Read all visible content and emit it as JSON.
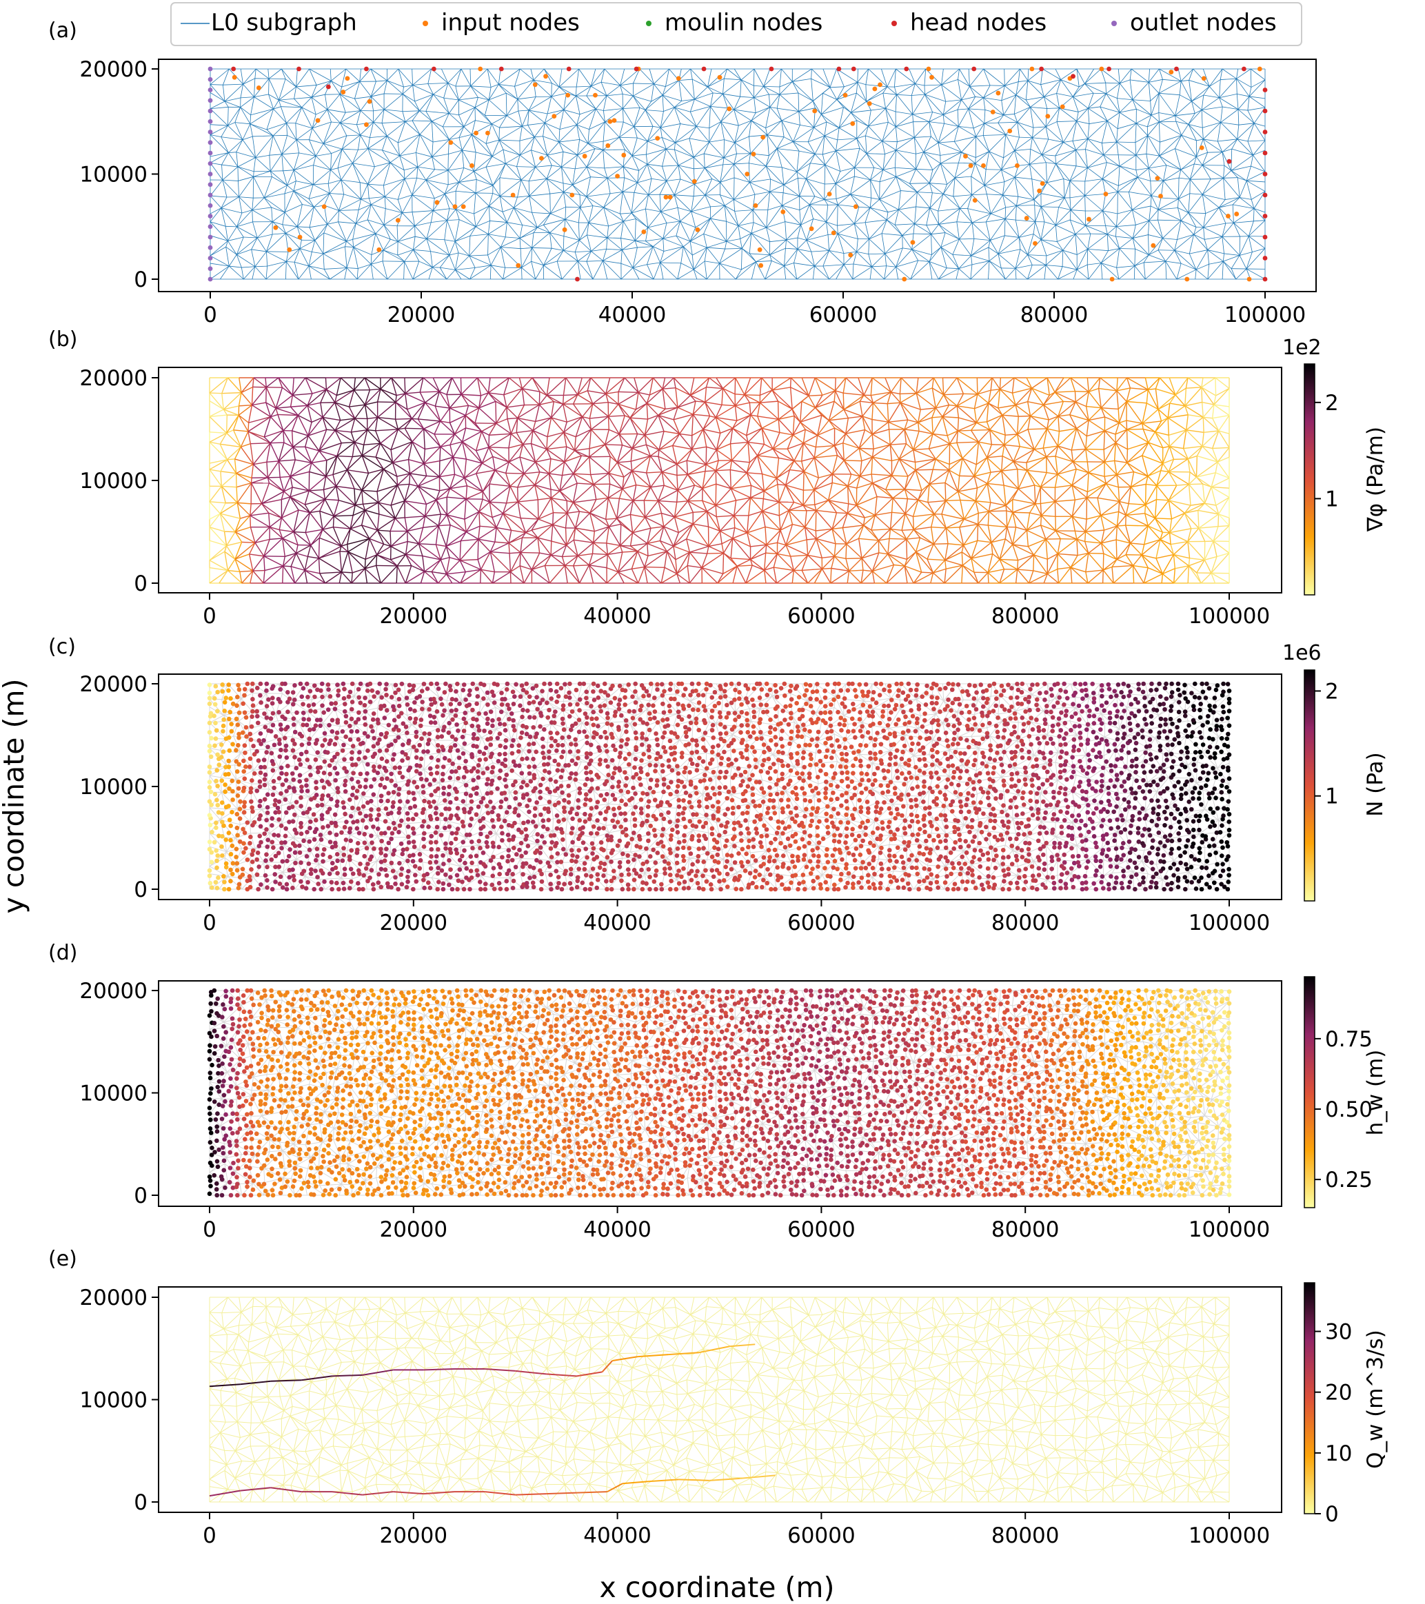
{
  "figure": {
    "xlabel": "x coordinate (m)",
    "ylabel": "y coordinate (m)"
  },
  "legend": {
    "entries": [
      {
        "label": "L0 subgraph",
        "type": "line",
        "color": "#1f77b4"
      },
      {
        "label": "input nodes",
        "type": "dot",
        "color": "#ff7f0e"
      },
      {
        "label": "moulin nodes",
        "type": "dot",
        "color": "#2ca02c"
      },
      {
        "label": "head nodes",
        "type": "dot",
        "color": "#d62728"
      },
      {
        "label": "outlet nodes",
        "type": "dot",
        "color": "#9467bd"
      }
    ]
  },
  "chart_data": [
    {
      "panel": "(a)",
      "type": "scatter",
      "background": "triangular mesh (L0 subgraph)",
      "xlim": [
        -5000,
        105000
      ],
      "ylim": [
        -1500,
        21000
      ],
      "xticks": [
        0,
        20000,
        40000,
        60000,
        80000,
        100000
      ],
      "yticks": [
        0,
        10000,
        20000
      ],
      "series": [
        {
          "name": "input nodes",
          "color": "#ff7f0e",
          "points": [
            [
              2300,
              19200
            ],
            [
              4600,
              18200
            ],
            [
              6200,
              4900
            ],
            [
              7500,
              2800
            ],
            [
              8500,
              4000
            ],
            [
              10200,
              15100
            ],
            [
              10800,
              6900
            ],
            [
              12600,
              17800
            ],
            [
              13000,
              19100
            ],
            [
              14800,
              14700
            ],
            [
              15100,
              16900
            ],
            [
              16000,
              2800
            ],
            [
              17800,
              5600
            ],
            [
              21500,
              7300
            ],
            [
              22800,
              13000
            ],
            [
              23200,
              6900
            ],
            [
              24000,
              6900
            ],
            [
              24800,
              10800
            ],
            [
              25200,
              13900
            ],
            [
              25600,
              20000
            ],
            [
              26300,
              13900
            ],
            [
              28700,
              8000
            ],
            [
              29200,
              1300
            ],
            [
              30800,
              18500
            ],
            [
              31400,
              11500
            ],
            [
              31800,
              19300
            ],
            [
              32600,
              15500
            ],
            [
              33600,
              4700
            ],
            [
              33900,
              17500
            ],
            [
              34300,
              8000
            ],
            [
              35500,
              11700
            ],
            [
              36500,
              17500
            ],
            [
              37700,
              12700
            ],
            [
              37900,
              15000
            ],
            [
              38300,
              15100
            ],
            [
              38600,
              9800
            ],
            [
              39200,
              11800
            ],
            [
              40600,
              20000
            ],
            [
              41100,
              4500
            ],
            [
              42400,
              13400
            ],
            [
              43200,
              7800
            ],
            [
              43600,
              7800
            ],
            [
              44400,
              19100
            ],
            [
              45900,
              9300
            ],
            [
              46200,
              4700
            ],
            [
              48300,
              19200
            ],
            [
              49200,
              16200
            ],
            [
              50900,
              10000
            ],
            [
              51500,
              11900
            ],
            [
              51700,
              7000
            ],
            [
              52100,
              2800
            ],
            [
              52200,
              1300
            ],
            [
              52400,
              13500
            ],
            [
              54300,
              6400
            ],
            [
              57000,
              4800
            ],
            [
              57300,
              16000
            ],
            [
              58700,
              8100
            ],
            [
              59100,
              4400
            ],
            [
              60200,
              17500
            ],
            [
              60700,
              2300
            ],
            [
              60900,
              14800
            ],
            [
              61200,
              6900
            ],
            [
              62500,
              16700
            ],
            [
              63000,
              18100
            ],
            [
              63500,
              18500
            ],
            [
              65800,
              0
            ],
            [
              66600,
              3500
            ],
            [
              68100,
              20000
            ],
            [
              68400,
              19200
            ],
            [
              71600,
              11700
            ],
            [
              72100,
              10800
            ],
            [
              72500,
              7500
            ],
            [
              73300,
              10800
            ],
            [
              74200,
              15900
            ],
            [
              74700,
              17700
            ],
            [
              75800,
              14100
            ],
            [
              76500,
              10800
            ],
            [
              77400,
              5800
            ],
            [
              77900,
              20000
            ],
            [
              78200,
              3400
            ],
            [
              78600,
              8400
            ],
            [
              78900,
              9100
            ],
            [
              79400,
              15500
            ],
            [
              80800,
              16400
            ],
            [
              81500,
              19100
            ],
            [
              83300,
              5700
            ],
            [
              84500,
              20000
            ],
            [
              84900,
              8100
            ],
            [
              85500,
              0
            ],
            [
              89400,
              3200
            ],
            [
              89800,
              9600
            ],
            [
              90100,
              7900
            ],
            [
              91100,
              19700
            ],
            [
              92600,
              0
            ],
            [
              94000,
              12500
            ],
            [
              94200,
              19100
            ],
            [
              96500,
              6000
            ],
            [
              97300,
              6200
            ],
            [
              98500,
              0
            ],
            [
              99500,
              20000
            ]
          ]
        },
        {
          "name": "head nodes",
          "color": "#d62728",
          "points": [
            [
              2200,
              20000
            ],
            [
              8400,
              20000
            ],
            [
              14800,
              20000
            ],
            [
              21200,
              20000
            ],
            [
              27600,
              20000
            ],
            [
              34000,
              20000
            ],
            [
              40400,
              20000
            ],
            [
              46800,
              20000
            ],
            [
              53200,
              20000
            ],
            [
              59600,
              20000
            ],
            [
              61000,
              20000
            ],
            [
              66000,
              20000
            ],
            [
              72400,
              20000
            ],
            [
              78800,
              20000
            ],
            [
              85200,
              20000
            ],
            [
              91600,
              20000
            ],
            [
              98000,
              20000
            ],
            [
              11200,
              18300
            ],
            [
              81800,
              19300
            ],
            [
              96600,
              11200
            ],
            [
              34800,
              0
            ],
            [
              100000,
              18000
            ],
            [
              100000,
              16000
            ],
            [
              100000,
              14000
            ],
            [
              100000,
              12000
            ],
            [
              100000,
              10000
            ],
            [
              100000,
              8000
            ],
            [
              100000,
              6000
            ],
            [
              100000,
              4000
            ],
            [
              100000,
              2000
            ],
            [
              100000,
              0
            ]
          ]
        },
        {
          "name": "outlet nodes",
          "color": "#9467bd",
          "points": [
            [
              0,
              0
            ],
            [
              0,
              1000
            ],
            [
              0,
              2000
            ],
            [
              0,
              3000
            ],
            [
              0,
              4000
            ],
            [
              0,
              5000
            ],
            [
              0,
              6000
            ],
            [
              0,
              7000
            ],
            [
              0,
              8000
            ],
            [
              0,
              9000
            ],
            [
              0,
              10000
            ],
            [
              0,
              11000
            ],
            [
              0,
              12000
            ],
            [
              0,
              13000
            ],
            [
              0,
              14000
            ],
            [
              0,
              15000
            ],
            [
              0,
              16000
            ],
            [
              0,
              17000
            ],
            [
              0,
              18000
            ],
            [
              0,
              19000
            ],
            [
              0,
              20000
            ]
          ]
        }
      ]
    },
    {
      "panel": "(b)",
      "type": "mesh-edges",
      "variable": "grad_phi_profile",
      "xlim": [
        -5000,
        105000
      ],
      "ylim": [
        -1500,
        21000
      ],
      "xticks": [
        0,
        20000,
        40000,
        60000,
        80000,
        100000
      ],
      "yticks": [
        0,
        10000,
        20000
      ],
      "colorbar": {
        "label": "∇φ (Pa/m)",
        "exponent": "1e2",
        "min": 0,
        "max": 2.4,
        "ticks": [
          {
            "v": 1,
            "label": "1"
          },
          {
            "v": 2,
            "label": "2"
          }
        ]
      },
      "profile_x": [
        0,
        2500,
        5000,
        15000,
        30000,
        45000,
        60000,
        75000,
        90000,
        100000
      ],
      "profile_v": [
        0.1,
        0.4,
        1.7,
        2.1,
        1.55,
        1.4,
        1.05,
        0.85,
        0.8,
        0.1
      ]
    },
    {
      "panel": "(c)",
      "type": "node-scatter",
      "variable": "N",
      "xlim": [
        -5000,
        105000
      ],
      "ylim": [
        -1500,
        21000
      ],
      "xticks": [
        0,
        20000,
        40000,
        60000,
        80000,
        100000
      ],
      "yticks": [
        0,
        10000,
        20000
      ],
      "colorbar": {
        "label": "N (Pa)",
        "exponent": "1e6",
        "min": 0,
        "max": 2.2,
        "ticks": [
          {
            "v": 1,
            "label": "1"
          },
          {
            "v": 2,
            "label": "2"
          }
        ]
      },
      "profile_x": [
        0,
        2000,
        5000,
        30000,
        60000,
        80000,
        90000,
        96000,
        100000
      ],
      "profile_v": [
        0.1,
        0.6,
        1.5,
        1.45,
        1.1,
        1.35,
        1.8,
        2.1,
        2.2
      ]
    },
    {
      "panel": "(d)",
      "type": "node-scatter",
      "variable": "h_w",
      "xlim": [
        -5000,
        105000
      ],
      "ylim": [
        -1500,
        21000
      ],
      "xticks": [
        0,
        20000,
        40000,
        60000,
        80000,
        100000
      ],
      "yticks": [
        0,
        10000,
        20000
      ],
      "colorbar": {
        "label": "h_w (m)",
        "min": 0.15,
        "max": 0.97,
        "ticks": [
          {
            "v": 0.25,
            "label": "0.25"
          },
          {
            "v": 0.5,
            "label": "0.50"
          },
          {
            "v": 0.75,
            "label": "0.75"
          }
        ]
      },
      "profile_x": [
        0,
        1500,
        3000,
        5000,
        20000,
        40000,
        60000,
        80000,
        90000,
        100000
      ],
      "profile_v": [
        0.97,
        0.8,
        0.6,
        0.45,
        0.4,
        0.5,
        0.7,
        0.55,
        0.35,
        0.2
      ]
    },
    {
      "panel": "(e)",
      "type": "mesh-edges",
      "variable": "Q_w",
      "xlim": [
        -5000,
        105000
      ],
      "ylim": [
        -1500,
        21000
      ],
      "xticks": [
        0,
        20000,
        40000,
        60000,
        80000,
        100000
      ],
      "yticks": [
        0,
        10000,
        20000
      ],
      "colorbar": {
        "label": "Q_w (m^3/s)",
        "min": 0,
        "max": 38,
        "ticks": [
          {
            "v": 0,
            "label": "0"
          },
          {
            "v": 10,
            "label": "10"
          },
          {
            "v": 20,
            "label": "20"
          },
          {
            "v": 30,
            "label": "30"
          }
        ]
      },
      "channels": [
        {
          "points": [
            [
              0,
              11300
            ],
            [
              3000,
              11500
            ],
            [
              6000,
              11800
            ],
            [
              9000,
              11900
            ],
            [
              12000,
              12300
            ],
            [
              15000,
              12400
            ],
            [
              18000,
              12900
            ],
            [
              21000,
              12900
            ],
            [
              24000,
              13000
            ],
            [
              27000,
              13000
            ],
            [
              30000,
              12800
            ],
            [
              33000,
              12500
            ],
            [
              36000,
              12300
            ],
            [
              38500,
              12700
            ],
            [
              39500,
              13800
            ],
            [
              42000,
              14200
            ],
            [
              45000,
              14400
            ],
            [
              48000,
              14600
            ],
            [
              51000,
              15200
            ],
            [
              53500,
              15400
            ]
          ],
          "q": [
            36,
            35,
            35,
            34,
            33,
            31,
            29,
            28,
            27,
            26,
            25,
            23,
            21,
            19,
            12,
            10,
            9,
            8,
            7,
            6
          ]
        },
        {
          "points": [
            [
              0,
              600
            ],
            [
              3000,
              1100
            ],
            [
              6000,
              1400
            ],
            [
              9000,
              1000
            ],
            [
              12000,
              1000
            ],
            [
              15000,
              700
            ],
            [
              18000,
              1000
            ],
            [
              21000,
              800
            ],
            [
              24000,
              1000
            ],
            [
              27000,
              1000
            ],
            [
              30000,
              700
            ],
            [
              33000,
              800
            ],
            [
              36000,
              900
            ],
            [
              39000,
              1000
            ],
            [
              40500,
              1800
            ],
            [
              43000,
              2000
            ],
            [
              46000,
              2200
            ],
            [
              49000,
              2100
            ],
            [
              52000,
              2300
            ],
            [
              55500,
              2600
            ]
          ],
          "q": [
            28,
            27,
            26,
            25,
            25,
            24,
            23,
            22,
            21,
            20,
            19,
            18,
            17,
            15,
            10,
            9,
            8,
            7,
            6,
            5
          ]
        }
      ]
    }
  ]
}
